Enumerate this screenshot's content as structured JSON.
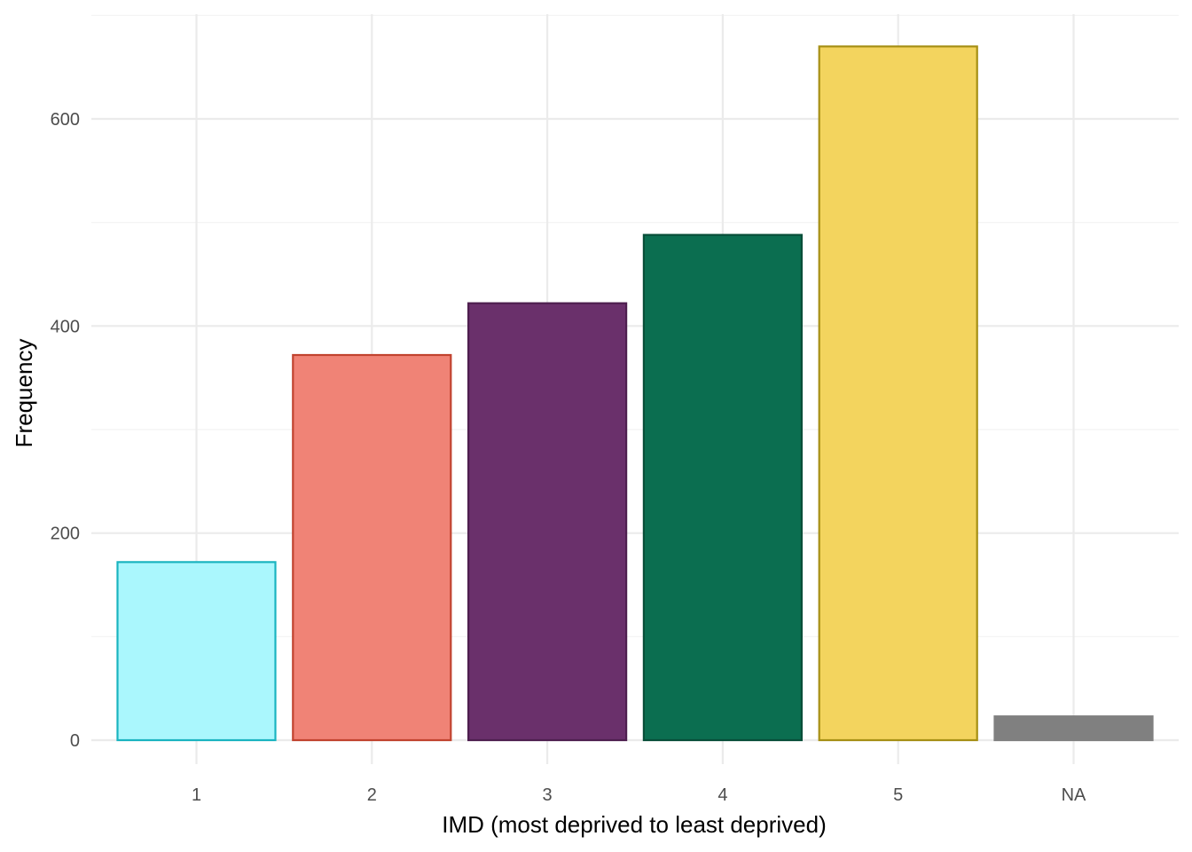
{
  "chart_data": {
    "type": "bar",
    "categories": [
      "1",
      "2",
      "3",
      "4",
      "5",
      "NA"
    ],
    "values": [
      172,
      372,
      422,
      488,
      670,
      23
    ],
    "fill_colors": [
      "#aaf7fd",
      "#f08376",
      "#6a306b",
      "#0b6e50",
      "#f3d45e",
      "#808080"
    ],
    "stroke_colors": [
      "#1ab4c0",
      "#c1432f",
      "#4e1f4f",
      "#084e39",
      "#a68f14",
      "#808080"
    ],
    "title": "",
    "xlabel": "IMD (most deprived to least deprived)",
    "ylabel": "Frequency",
    "ylim": [
      -25,
      700
    ],
    "yticks": [
      0,
      200,
      400,
      600
    ],
    "ytick_labels": [
      "0",
      "200",
      "400",
      "600"
    ],
    "grid": true,
    "legend": "none"
  }
}
